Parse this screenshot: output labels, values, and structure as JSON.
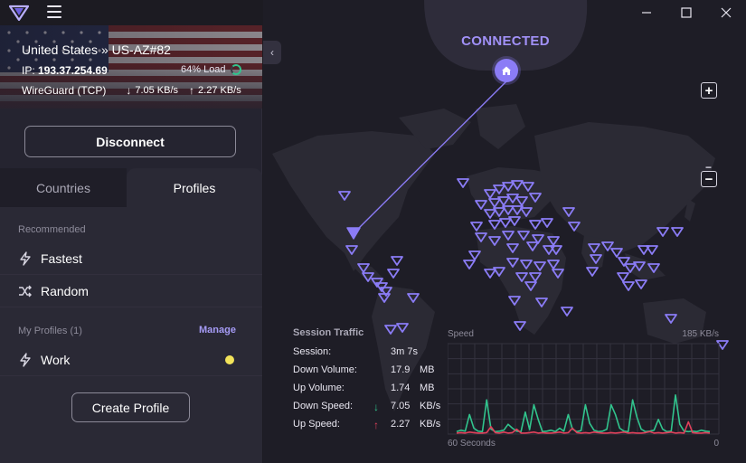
{
  "titlebar": {
    "logo_icon": "shield-triangle-icon",
    "menu_icon": "hamburger-icon"
  },
  "connection": {
    "server": "United States » US-AZ#82",
    "ip_label": "IP:",
    "ip": "193.37.254.69",
    "load": "64% Load",
    "load_fraction": 0.64,
    "protocol": "WireGuard (TCP)",
    "down_rate": "7.05 KB/s",
    "up_rate": "2.27 KB/s"
  },
  "disconnect_label": "Disconnect",
  "tabs": {
    "countries": "Countries",
    "profiles": "Profiles"
  },
  "recommended": {
    "label": "Recommended",
    "items": [
      {
        "label": "Fastest",
        "icon": "bolt-icon"
      },
      {
        "label": "Random",
        "icon": "shuffle-icon"
      }
    ]
  },
  "profiles": {
    "label": "My Profiles (1)",
    "manage": "Manage",
    "items": [
      {
        "label": "Work",
        "icon": "bolt-icon",
        "color": "#f2e35a"
      }
    ]
  },
  "create_profile_label": "Create Profile",
  "map": {
    "status": "CONNECTED",
    "zoom_in": "+",
    "zoom_out": "−",
    "accent": "#8b7cf6"
  },
  "session": {
    "title": "Session Traffic",
    "rows": [
      {
        "label": "Session:",
        "value": "3m 7s",
        "unit": "",
        "arrow": ""
      },
      {
        "label": "Down Volume:",
        "value": "17.9",
        "unit": "MB",
        "arrow": ""
      },
      {
        "label": "Up Volume:",
        "value": "1.74",
        "unit": "MB",
        "arrow": ""
      },
      {
        "label": "Down Speed:",
        "value": "7.05",
        "unit": "KB/s",
        "arrow": "↓"
      },
      {
        "label": "Up Speed:",
        "value": "2.27",
        "unit": "KB/s",
        "arrow": "↑"
      }
    ]
  },
  "chart_data": {
    "type": "line",
    "title": "Speed",
    "ymax_label": "185  KB/s",
    "ylim": [
      0,
      185
    ],
    "x_start_label": "60 Seconds",
    "x_end_label": "0",
    "grid": true,
    "series": [
      {
        "color": "#31c48d",
        "values": [
          5,
          8,
          6,
          40,
          12,
          6,
          5,
          70,
          10,
          5,
          6,
          8,
          20,
          12,
          6,
          5,
          45,
          9,
          60,
          30,
          5,
          6,
          8,
          5,
          12,
          6,
          40,
          10,
          5,
          7,
          60,
          22,
          8,
          5,
          6,
          10,
          60,
          40,
          12,
          6,
          5,
          70,
          35,
          10,
          5,
          6,
          8,
          30,
          10,
          5,
          6,
          80,
          20,
          6,
          5,
          6,
          5,
          8,
          6,
          5
        ]
      },
      {
        "color": "#e0405a",
        "values": [
          2,
          3,
          2,
          4,
          3,
          2,
          2,
          3,
          15,
          3,
          2,
          4,
          2,
          3,
          10,
          2,
          2,
          3,
          4,
          2,
          3,
          2,
          2,
          3,
          4,
          2,
          3,
          12,
          3,
          2,
          3,
          2,
          4,
          3,
          2,
          2,
          3,
          2,
          3,
          4,
          2,
          3,
          2,
          2,
          3,
          5,
          2,
          3,
          2,
          3,
          4,
          2,
          3,
          2,
          25,
          3,
          2,
          2,
          3,
          2
        ]
      }
    ]
  }
}
